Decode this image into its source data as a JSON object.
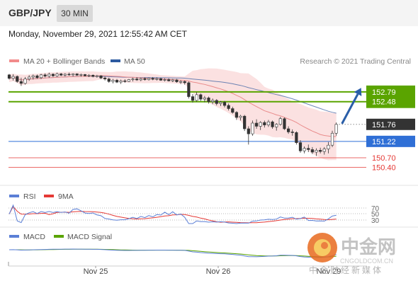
{
  "header": {
    "symbol": "GBP/JPY",
    "timeframe": "30 MIN"
  },
  "date": "Monday, November 29, 2021 12:55:42 AM CET",
  "legend": {
    "ma20": "MA 20 + Bollinger Bands",
    "ma50": "MA 50",
    "copyright": "Research © 2021 Trading Central",
    "rsi": "RSI",
    "rsi_ma": "9MA",
    "macd": "MACD",
    "macd_signal": "MACD Signal"
  },
  "colors": {
    "green": "#5aa400",
    "blue": "#2f6fd6",
    "red": "#e53935",
    "candle_up": "#ffffff",
    "candle_down": "#333333",
    "band": "#f8c9c9",
    "ma50": "#4a6aa8",
    "arrow": "#2a5ea8"
  },
  "watermark": {
    "main": "中金网",
    "sub": "CNGOLDCOM.CN",
    "tagline": "中金财经新媒体"
  },
  "chart_data": {
    "type": "candlestick",
    "y_range": [
      150.05,
      153.55
    ],
    "levels": [
      {
        "value": 152.79,
        "label": "152.79",
        "kind": "resistance"
      },
      {
        "value": 152.48,
        "label": "152.48",
        "kind": "resistance"
      },
      {
        "value": 151.76,
        "label": "151.76",
        "kind": "current"
      },
      {
        "value": 151.22,
        "label": "151.22",
        "kind": "pivot"
      },
      {
        "value": 150.7,
        "label": "150.70",
        "kind": "support"
      },
      {
        "value": 150.4,
        "label": "150.40",
        "kind": "support"
      }
    ],
    "x_labels": [
      "Nov 25",
      "Nov 26",
      "Nov 29"
    ],
    "candles": [
      [
        153.33,
        153.36,
        153.18,
        153.22
      ],
      [
        153.22,
        153.35,
        153.15,
        153.28
      ],
      [
        153.28,
        153.31,
        153.08,
        153.12
      ],
      [
        153.12,
        153.24,
        152.98,
        153.06
      ],
      [
        153.06,
        153.26,
        153.02,
        153.2
      ],
      [
        153.2,
        153.32,
        153.14,
        153.26
      ],
      [
        153.26,
        153.34,
        153.18,
        153.3
      ],
      [
        153.3,
        153.34,
        153.21,
        153.24
      ],
      [
        153.24,
        153.36,
        153.2,
        153.33
      ],
      [
        153.33,
        153.38,
        153.25,
        153.29
      ],
      [
        153.29,
        153.4,
        153.24,
        153.35
      ],
      [
        153.35,
        153.38,
        153.26,
        153.3
      ],
      [
        153.3,
        153.4,
        153.27,
        153.36
      ],
      [
        153.36,
        153.39,
        153.29,
        153.32
      ],
      [
        153.32,
        153.38,
        153.28,
        153.35
      ],
      [
        153.35,
        153.4,
        153.3,
        153.33
      ],
      [
        153.33,
        153.38,
        153.28,
        153.36
      ],
      [
        153.36,
        153.38,
        153.3,
        153.32
      ],
      [
        153.32,
        153.37,
        153.27,
        153.34
      ],
      [
        153.34,
        153.36,
        153.28,
        153.3
      ],
      [
        153.3,
        153.35,
        153.26,
        153.32
      ],
      [
        153.32,
        153.34,
        153.25,
        153.28
      ],
      [
        153.28,
        153.33,
        153.24,
        153.3
      ],
      [
        153.3,
        153.32,
        153.2,
        153.23
      ],
      [
        153.23,
        153.28,
        153.15,
        153.2
      ],
      [
        153.2,
        153.24,
        153.08,
        153.12
      ],
      [
        153.12,
        153.2,
        153.06,
        153.16
      ],
      [
        153.16,
        153.2,
        153.07,
        153.1
      ],
      [
        153.1,
        153.18,
        153.04,
        153.14
      ],
      [
        153.14,
        153.19,
        153.08,
        153.12
      ],
      [
        153.12,
        153.2,
        153.1,
        153.18
      ],
      [
        153.18,
        153.24,
        153.12,
        153.2
      ],
      [
        153.2,
        153.26,
        153.14,
        153.17
      ],
      [
        153.17,
        153.24,
        153.13,
        153.21
      ],
      [
        153.21,
        153.25,
        153.15,
        153.18
      ],
      [
        153.18,
        153.24,
        153.15,
        153.22
      ],
      [
        153.22,
        153.26,
        153.16,
        153.19
      ],
      [
        153.19,
        153.25,
        153.15,
        153.21
      ],
      [
        153.21,
        153.24,
        153.14,
        153.16
      ],
      [
        153.16,
        153.22,
        153.12,
        153.18
      ],
      [
        153.18,
        153.22,
        153.12,
        153.14
      ],
      [
        153.14,
        153.2,
        153.1,
        153.17
      ],
      [
        153.17,
        153.2,
        153.08,
        153.11
      ],
      [
        153.11,
        153.16,
        153.04,
        153.12
      ],
      [
        153.12,
        153.15,
        153.02,
        153.08
      ],
      [
        153.08,
        153.12,
        152.58,
        152.64
      ],
      [
        152.64,
        152.72,
        152.45,
        152.52
      ],
      [
        152.52,
        152.78,
        152.48,
        152.7
      ],
      [
        152.7,
        152.74,
        152.5,
        152.56
      ],
      [
        152.56,
        152.66,
        152.46,
        152.6
      ],
      [
        152.6,
        152.64,
        152.42,
        152.48
      ],
      [
        152.48,
        152.58,
        152.4,
        152.52
      ],
      [
        152.52,
        152.56,
        152.36,
        152.42
      ],
      [
        152.42,
        152.5,
        152.34,
        152.46
      ],
      [
        152.46,
        152.5,
        152.3,
        152.36
      ],
      [
        152.36,
        152.42,
        152.2,
        152.26
      ],
      [
        152.26,
        152.32,
        152.1,
        152.14
      ],
      [
        152.14,
        152.18,
        151.9,
        151.98
      ],
      [
        151.98,
        152.06,
        151.88,
        152.02
      ],
      [
        152.02,
        152.06,
        151.55,
        151.62
      ],
      [
        151.62,
        151.7,
        151.12,
        151.46
      ],
      [
        151.46,
        151.88,
        151.4,
        151.8
      ],
      [
        151.8,
        151.92,
        151.62,
        151.7
      ],
      [
        151.7,
        151.86,
        151.58,
        151.82
      ],
      [
        151.82,
        151.88,
        151.66,
        151.74
      ],
      [
        151.74,
        151.9,
        151.68,
        151.84
      ],
      [
        151.84,
        151.88,
        151.62,
        151.68
      ],
      [
        151.68,
        151.8,
        151.56,
        151.76
      ],
      [
        151.76,
        152.0,
        151.72,
        151.94
      ],
      [
        151.94,
        151.98,
        151.58,
        151.62
      ],
      [
        151.62,
        151.7,
        151.46,
        151.52
      ],
      [
        151.52,
        151.6,
        151.4,
        151.5
      ],
      [
        151.5,
        151.54,
        151.12,
        151.18
      ],
      [
        151.18,
        151.26,
        150.86,
        150.92
      ],
      [
        150.92,
        151.06,
        150.84,
        151.0
      ],
      [
        151.0,
        151.12,
        150.88,
        150.96
      ],
      [
        150.96,
        151.04,
        150.82,
        150.88
      ],
      [
        150.88,
        151.0,
        150.76,
        150.94
      ],
      [
        150.94,
        151.02,
        150.84,
        150.9
      ],
      [
        150.9,
        151.04,
        150.8,
        150.98
      ],
      [
        150.98,
        151.2,
        150.84,
        151.1
      ],
      [
        151.1,
        151.56,
        151.04,
        151.48
      ],
      [
        151.48,
        151.82,
        151.4,
        151.76
      ]
    ]
  }
}
